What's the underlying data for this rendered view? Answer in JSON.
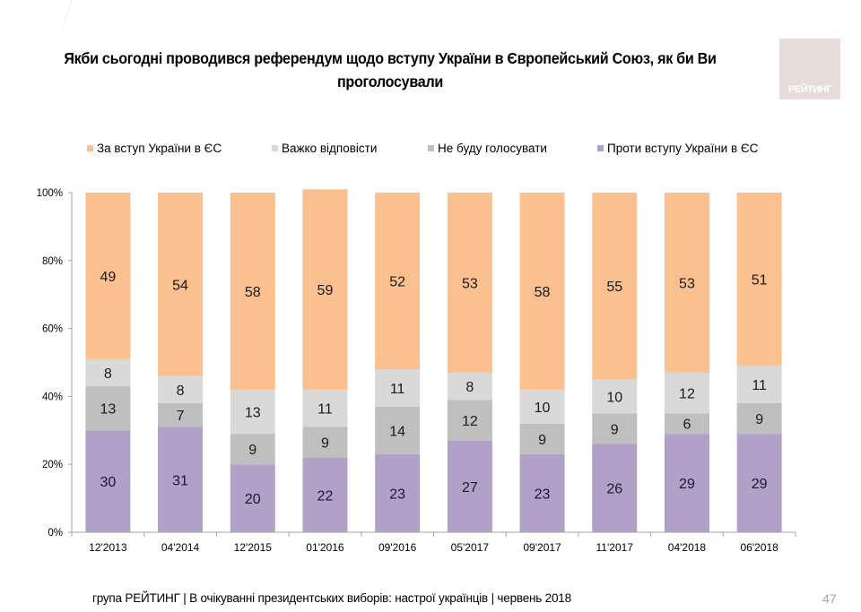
{
  "slide": {
    "title": "Якби сьогодні проводився референдум щодо вступу України в Європейський Союз, як би Ви проголосували",
    "title_line1": "Якби сьогодні проводився референдум щодо вступу України в Європейський Союз, як би Ви",
    "title_line2": "проголосували",
    "logo_text": "РЕЙТИНГ",
    "footer": "група РЕЙТИНГ  | В очікуванні президентських виборів: настрої українців |  червень 2018",
    "page_number": "47"
  },
  "chart_data": {
    "type": "bar",
    "stacked": true,
    "normalized": true,
    "title": "Якби сьогодні проводився референдум щодо вступу України в Європейський Союз, як би Ви проголосували",
    "xlabel": "",
    "ylabel": "",
    "ylim": [
      0,
      100
    ],
    "yticks": [
      "0%",
      "20%",
      "40%",
      "60%",
      "80%",
      "100%"
    ],
    "grid": false,
    "legend_position": "top",
    "categories": [
      "12'2013",
      "04'2014",
      "12'2015",
      "01'2016",
      "09'2016",
      "05'2017",
      "09'2017",
      "11'2017",
      "04'2018",
      "06'2018"
    ],
    "series": [
      {
        "name": "Проти вступу України в ЄС",
        "color": "#b1a0c7",
        "values": [
          30,
          31,
          20,
          22,
          23,
          27,
          23,
          26,
          29,
          29
        ]
      },
      {
        "name": "Не буду голосувати",
        "color": "#bfbfbf",
        "values": [
          13,
          7,
          9,
          9,
          14,
          12,
          9,
          9,
          6,
          9
        ]
      },
      {
        "name": "Важко відповісти",
        "color": "#d9d9d9",
        "values": [
          8,
          8,
          13,
          11,
          11,
          8,
          10,
          10,
          12,
          11
        ]
      },
      {
        "name": "За вступ України в ЄС",
        "color": "#fac090",
        "values": [
          49,
          54,
          58,
          59,
          52,
          53,
          58,
          55,
          53,
          51
        ]
      }
    ],
    "legend_order": [
      "За вступ України в ЄС",
      "Важко відповісти",
      "Не буду голосувати",
      "Проти вступу України в ЄС"
    ]
  }
}
